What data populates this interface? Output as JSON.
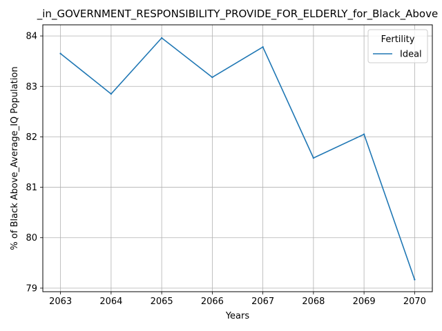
{
  "chart_data": {
    "type": "line",
    "title": "_in_GOVERNMENT_RESPONSIBILITY_PROVIDE_FOR_ELDERLY_for_Black_Above",
    "xlabel": "Years",
    "ylabel": "% of Black Above_Average_IQ Population",
    "x": [
      2063,
      2064,
      2065,
      2066,
      2067,
      2068,
      2069,
      2070
    ],
    "x_tick_labels": [
      "2063",
      "2064",
      "2065",
      "2066",
      "2067",
      "2068",
      "2069",
      "2070"
    ],
    "y_ticks": [
      79,
      80,
      81,
      82,
      83,
      84
    ],
    "y_tick_labels": [
      "79",
      "80",
      "81",
      "82",
      "83",
      "84"
    ],
    "xlim": [
      2062.65,
      2070.35
    ],
    "ylim": [
      78.93,
      84.22
    ],
    "grid": true,
    "legend": {
      "title": "Fertility",
      "placement": "top-right"
    },
    "series": [
      {
        "name": "Ideal",
        "color": "#1f77b4",
        "values": [
          83.65,
          82.85,
          83.96,
          83.18,
          83.78,
          81.58,
          82.05,
          79.17
        ]
      }
    ]
  }
}
